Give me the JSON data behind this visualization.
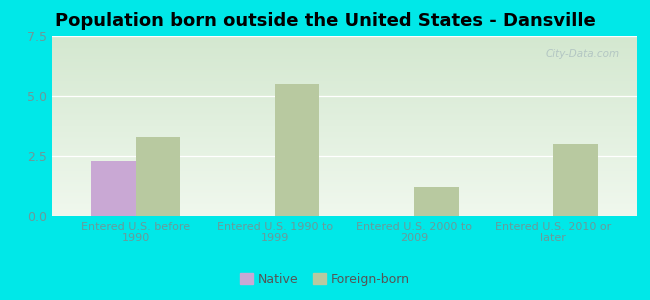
{
  "title": "Population born outside the United States - Dansville",
  "categories": [
    "Entered U.S. before\n1990",
    "Entered U.S. 1990 to\n1999",
    "Entered U.S. 2000 to\n2009",
    "Entered U.S. 2010 or\nlater"
  ],
  "native_values": [
    2.3,
    0,
    0,
    0
  ],
  "foreign_values": [
    3.3,
    5.5,
    1.2,
    3.0
  ],
  "native_color": "#c9a8d4",
  "foreign_color": "#b8c9a0",
  "ylim": [
    0,
    7.5
  ],
  "yticks": [
    0,
    2.5,
    5,
    7.5
  ],
  "background_outer": "#00e8e8",
  "background_inner_topleft": "#d4e8d0",
  "background_inner_bottomright": "#f0f8ee",
  "bar_width": 0.32,
  "title_fontsize": 13,
  "watermark": "City-Data.com",
  "tick_label_color": "#6a9a9a",
  "legend_label_color": "#555555"
}
